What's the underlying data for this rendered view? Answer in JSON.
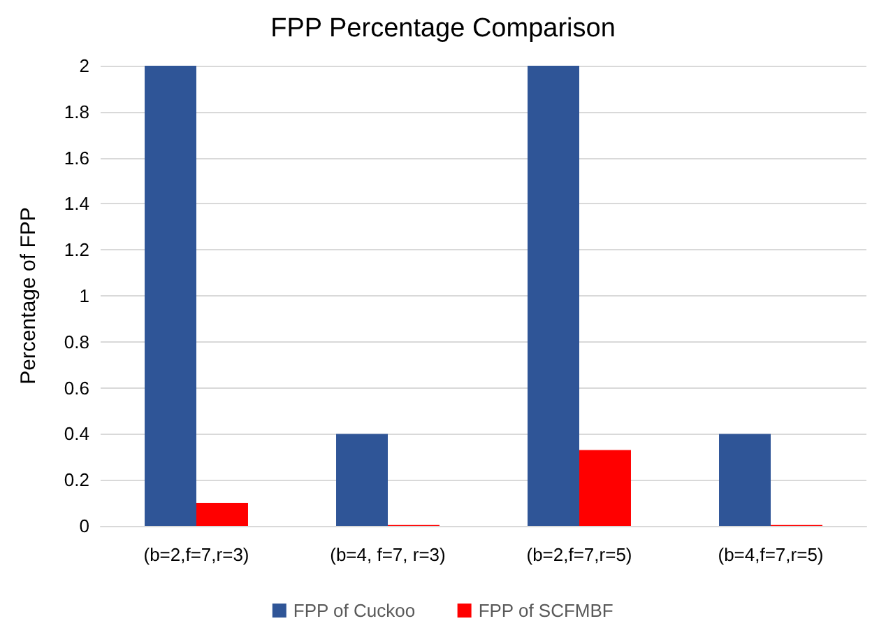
{
  "chart_data": {
    "type": "bar",
    "title": "FPP Percentage Comparison",
    "ylabel": "Percentage of FPP",
    "categories": [
      "(b=2,f=7,r=3)",
      "(b=4, f=7, r=3)",
      "(b=2,f=7,r=5)",
      "(b=4,f=7,r=5)"
    ],
    "series": [
      {
        "name": "FPP of Cuckoo",
        "color": "#2f5597",
        "values": [
          2,
          0.4,
          2,
          0.4
        ]
      },
      {
        "name": "FPP of SCFMBF",
        "color": "#ff0000",
        "values": [
          0.1,
          0.004,
          0.33,
          0.004
        ]
      }
    ],
    "ylim": [
      0,
      2
    ],
    "yticks": [
      0,
      0.2,
      0.4,
      0.6,
      0.8,
      1,
      1.2,
      1.4,
      1.6,
      1.8,
      2
    ],
    "grid": "y",
    "legend": "bottom"
  }
}
